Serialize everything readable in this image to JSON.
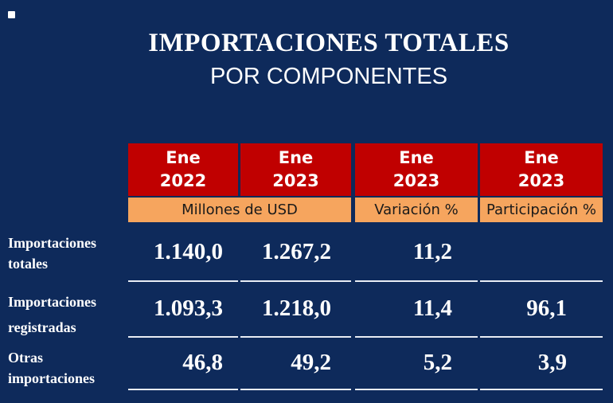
{
  "header": {
    "title": "IMPORTACIONES TOTALES",
    "subtitle": "POR COMPONENTES"
  },
  "table": {
    "columns": [
      {
        "month": "Ene",
        "year": "2022"
      },
      {
        "month": "Ene",
        "year": "2023"
      },
      {
        "month": "Ene",
        "year": "2023"
      },
      {
        "month": "Ene",
        "year": "2023"
      }
    ],
    "units": [
      "Millones de USD",
      "Variación %",
      "Participación %"
    ],
    "rows": [
      {
        "label": [
          "Importaciones",
          "totales"
        ],
        "cells": [
          "1.140,0",
          "1.267,2",
          "11,2",
          null
        ]
      },
      {
        "label": [
          "Importaciones",
          "registradas"
        ],
        "cells": [
          "1.093,3",
          "1.218,0",
          "11,4",
          "96,1"
        ]
      },
      {
        "label": [
          "Otras",
          "importaciones"
        ],
        "cells": [
          "46,8",
          "49,2",
          "5,2",
          "3,9"
        ]
      }
    ]
  }
}
